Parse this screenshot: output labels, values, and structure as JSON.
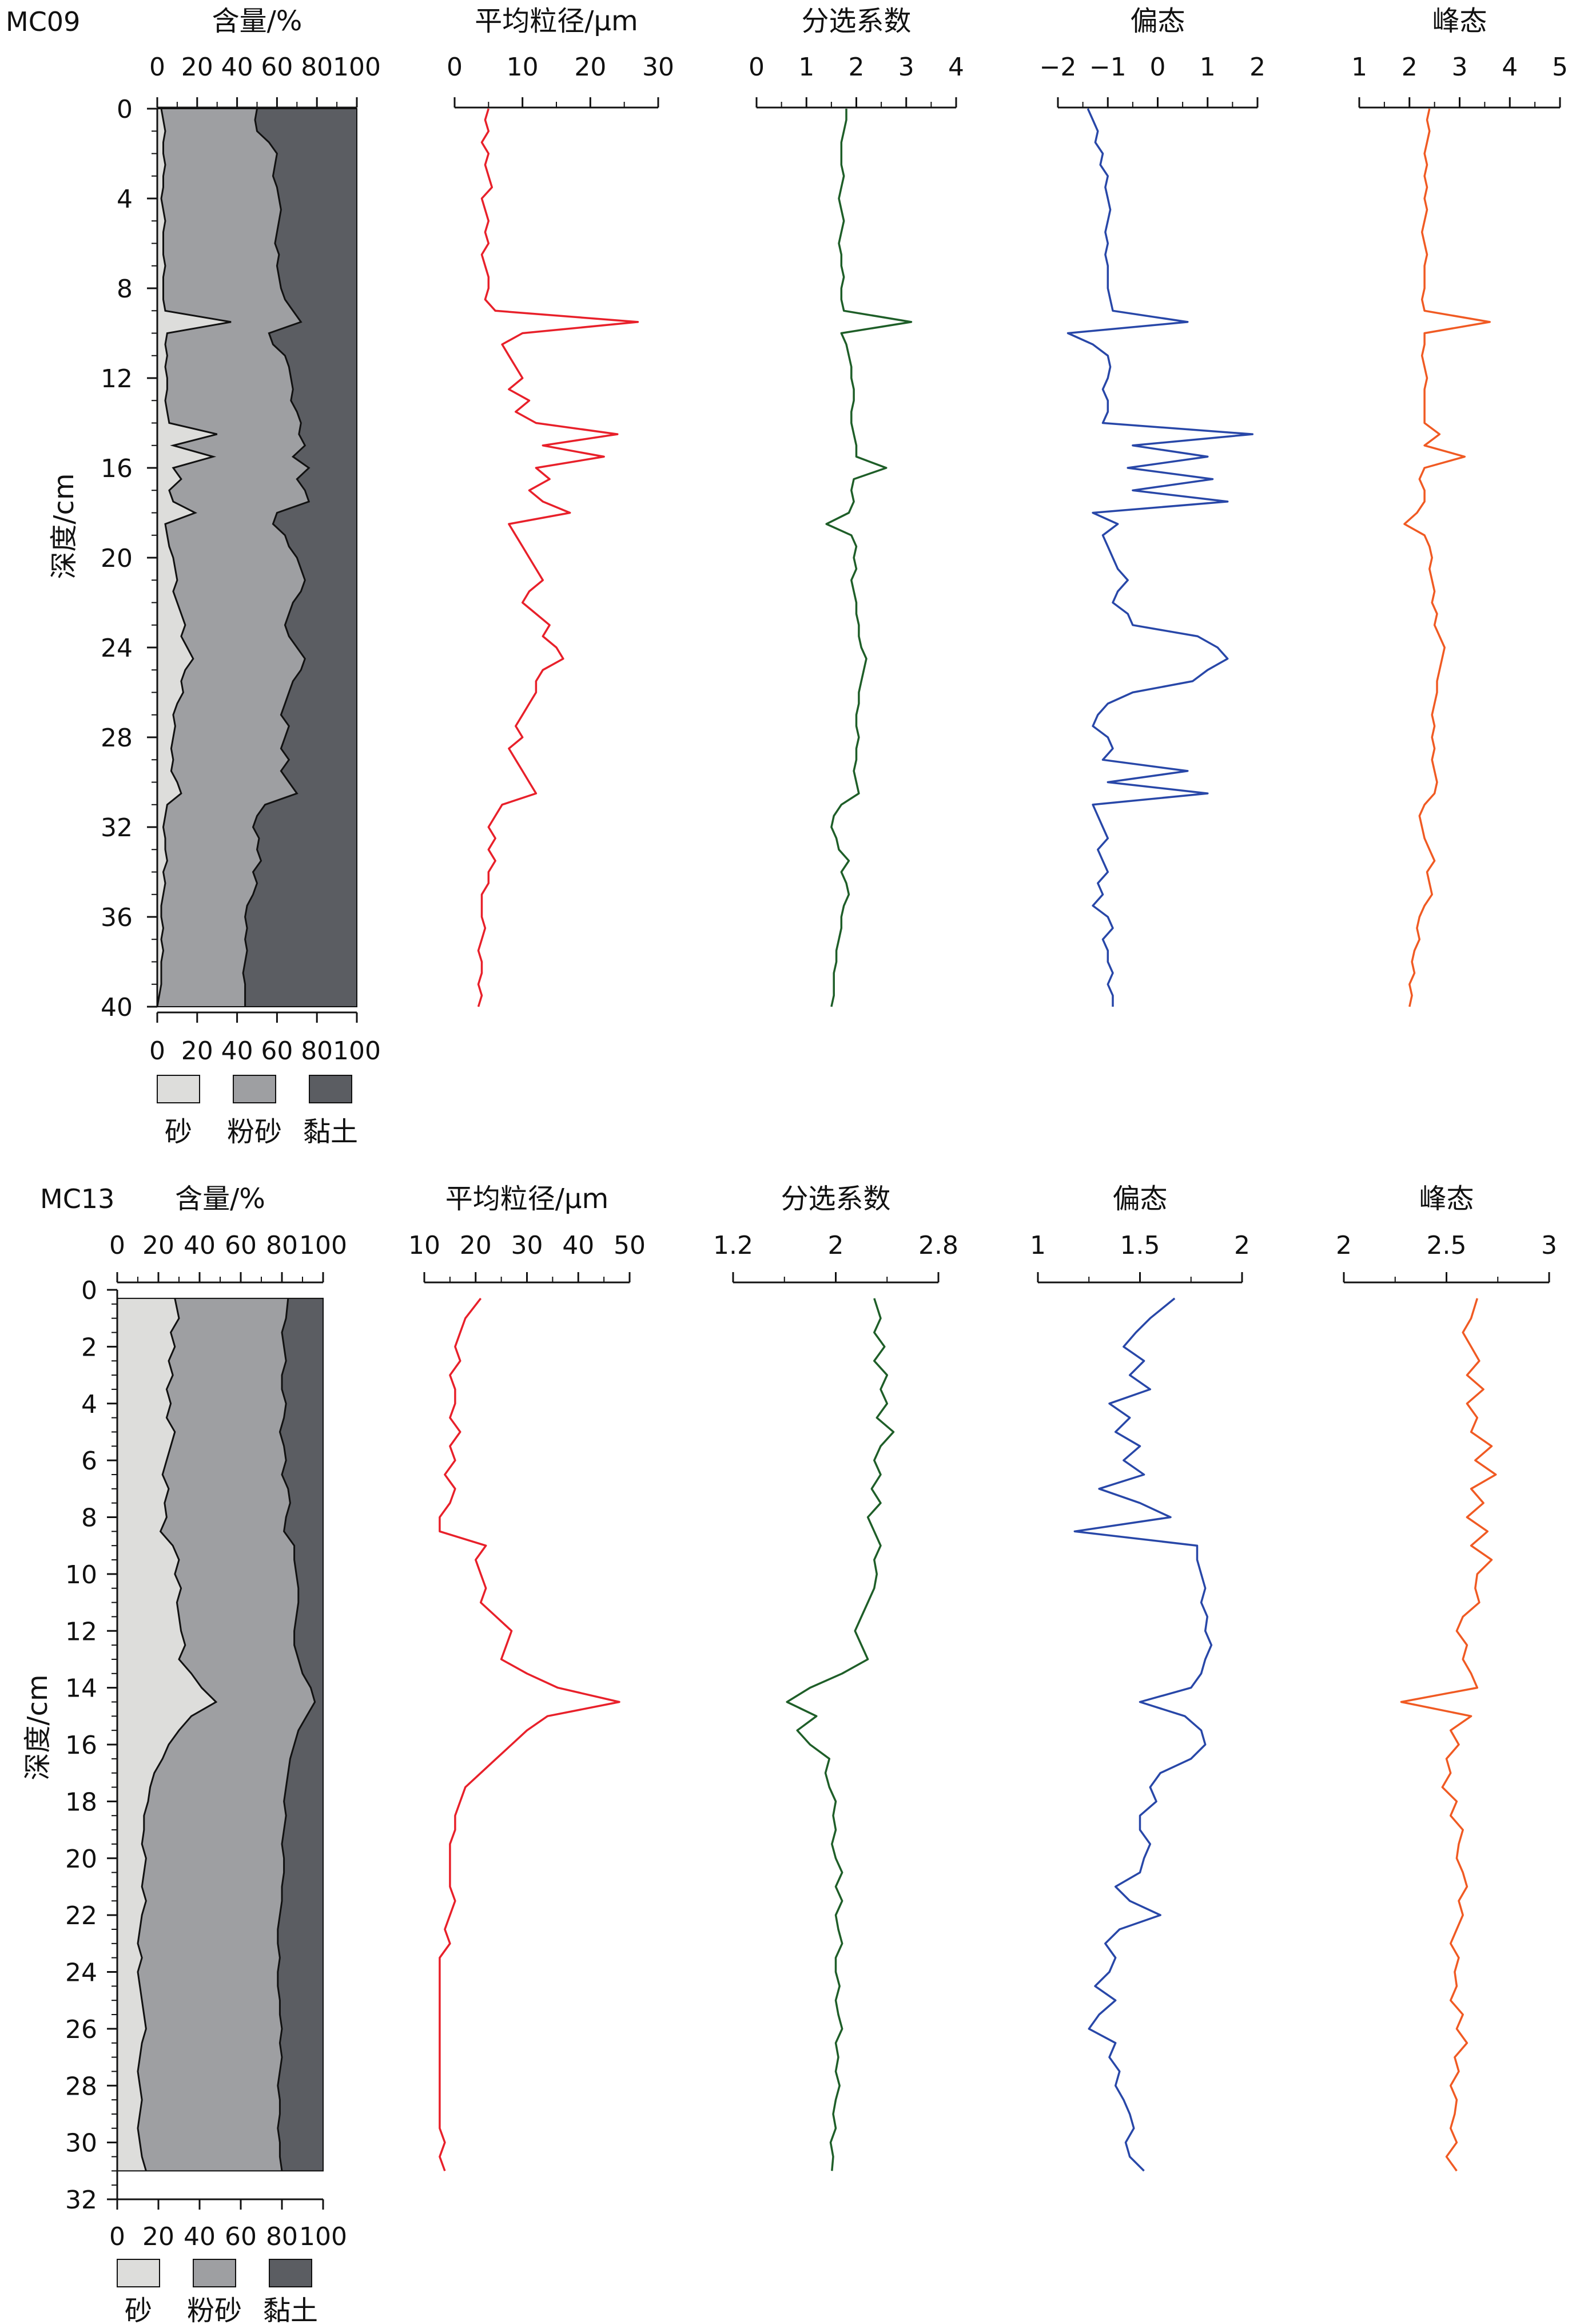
{
  "colors": {
    "sand": "#dddddb",
    "silt": "#9e9fa2",
    "clay": "#5b5d62",
    "axis": "#111111",
    "mz": "#e8202a",
    "sort": "#1e5e28",
    "skew": "#2847a8",
    "kurt": "#f05a23"
  },
  "legend": [
    "砂",
    "粉砂",
    "黏土"
  ],
  "depth_axis_label": "深度/cm",
  "chart_data": [
    {
      "core": "MC09",
      "type": "area+line",
      "depth_range": [
        0,
        40
      ],
      "depth_ticks": [
        0,
        4,
        8,
        12,
        16,
        20,
        24,
        28,
        32,
        36,
        40
      ],
      "depth_label": "深度/cm",
      "panels": [
        {
          "key": "content",
          "title": "含量/%",
          "range": [
            0,
            100
          ],
          "ticks": [
            0,
            20,
            40,
            60,
            80,
            100
          ]
        },
        {
          "key": "mz",
          "title": "平均粒径/μm",
          "range": [
            0,
            30
          ],
          "ticks": [
            0,
            10,
            20,
            30
          ]
        },
        {
          "key": "sort",
          "title": "分选系数",
          "range": [
            0,
            4
          ],
          "ticks": [
            0,
            1,
            2,
            3,
            4
          ]
        },
        {
          "key": "skew",
          "title": "偏态",
          "range": [
            -2,
            2
          ],
          "ticks": [
            -2,
            -1,
            0,
            1,
            2
          ],
          "tick_labels": [
            "−2",
            "−1",
            "0",
            "1",
            "2"
          ]
        },
        {
          "key": "kurt",
          "title": "峰态",
          "range": [
            1,
            5
          ],
          "ticks": [
            1,
            2,
            3,
            4,
            5
          ]
        }
      ],
      "depth": [
        0,
        0.5,
        1,
        1.5,
        2,
        2.5,
        3,
        3.5,
        4,
        4.5,
        5,
        5.5,
        6,
        6.5,
        7,
        7.5,
        8,
        8.5,
        9,
        9.5,
        10,
        10.5,
        11,
        11.5,
        12,
        12.5,
        13,
        13.5,
        14,
        14.5,
        15,
        15.5,
        16,
        16.5,
        17,
        17.5,
        18,
        18.5,
        19,
        19.5,
        20,
        20.5,
        21,
        21.5,
        22,
        22.5,
        23,
        23.5,
        24,
        24.5,
        25,
        25.5,
        26,
        26.5,
        27,
        27.5,
        28,
        28.5,
        29,
        29.5,
        30,
        30.5,
        31,
        31.5,
        32,
        32.5,
        33,
        33.5,
        34,
        34.5,
        35,
        35.5,
        36,
        36.5,
        37,
        37.5,
        38,
        38.5,
        39,
        39.5,
        40
      ],
      "sand": [
        2,
        3,
        4,
        3,
        3,
        4,
        3,
        3,
        2,
        3,
        4,
        3,
        3,
        3,
        4,
        3,
        3,
        3,
        4,
        37,
        5,
        4,
        5,
        4,
        5,
        5,
        4,
        5,
        6,
        30,
        8,
        28,
        8,
        12,
        6,
        8,
        19,
        4,
        5,
        6,
        8,
        9,
        10,
        8,
        10,
        12,
        14,
        12,
        15,
        18,
        14,
        12,
        13,
        10,
        8,
        9,
        8,
        7,
        8,
        7,
        10,
        12,
        5,
        4,
        3,
        4,
        4,
        5,
        3,
        4,
        3,
        2,
        2,
        3,
        2,
        3,
        2,
        2,
        2,
        1,
        0
      ],
      "clay_top": [
        50,
        49,
        50,
        56,
        60,
        59,
        58,
        60,
        61,
        62,
        61,
        60,
        59,
        61,
        60,
        61,
        62,
        64,
        68,
        72,
        56,
        58,
        64,
        66,
        67,
        68,
        67,
        70,
        72,
        71,
        74,
        68,
        76,
        70,
        74,
        76,
        60,
        58,
        64,
        66,
        70,
        72,
        74,
        72,
        68,
        66,
        64,
        66,
        70,
        74,
        72,
        68,
        66,
        64,
        62,
        66,
        64,
        62,
        66,
        62,
        66,
        70,
        54,
        50,
        48,
        51,
        50,
        52,
        48,
        50,
        48,
        45,
        44,
        45,
        44,
        45,
        44,
        43,
        44,
        44,
        44
      ],
      "series": {
        "mz": [
          5,
          4.5,
          5,
          4,
          5,
          4.5,
          5,
          5.5,
          4,
          4.5,
          5,
          4.5,
          5,
          4,
          4.5,
          5,
          5,
          4.5,
          6,
          27,
          10,
          7,
          8,
          9,
          10,
          8,
          11,
          9,
          12,
          24,
          13,
          22,
          12,
          14,
          11,
          13,
          17,
          8,
          9,
          10,
          11,
          12,
          13,
          11,
          10,
          12,
          14,
          13,
          15,
          16,
          13,
          12,
          12,
          11,
          10,
          9,
          10,
          8,
          9,
          10,
          11,
          12,
          7,
          6,
          5,
          6,
          5,
          6,
          5,
          5,
          4,
          4,
          4,
          4.5,
          4,
          3.5,
          4,
          4,
          3.5,
          4,
          3.5
        ],
        "sort": [
          1.8,
          1.8,
          1.75,
          1.7,
          1.7,
          1.7,
          1.75,
          1.7,
          1.65,
          1.7,
          1.75,
          1.7,
          1.65,
          1.7,
          1.7,
          1.75,
          1.7,
          1.7,
          1.75,
          3.1,
          1.7,
          1.8,
          1.85,
          1.9,
          1.9,
          1.95,
          1.95,
          1.9,
          1.9,
          1.95,
          2.0,
          2.0,
          2.6,
          1.95,
          1.9,
          1.95,
          1.85,
          1.4,
          1.9,
          2.0,
          1.95,
          2.0,
          1.9,
          1.95,
          2.0,
          2.0,
          2.05,
          2.05,
          2.1,
          2.2,
          2.15,
          2.1,
          2.05,
          2.05,
          2.0,
          2.0,
          2.05,
          2.0,
          2.0,
          1.95,
          2.0,
          2.05,
          1.7,
          1.55,
          1.5,
          1.6,
          1.65,
          1.85,
          1.7,
          1.8,
          1.85,
          1.75,
          1.7,
          1.7,
          1.65,
          1.6,
          1.6,
          1.55,
          1.55,
          1.55,
          1.5
        ],
        "skew": [
          -1.4,
          -1.3,
          -1.2,
          -1.25,
          -1.1,
          -1.15,
          -1.0,
          -1.05,
          -1.0,
          -0.95,
          -1.0,
          -1.05,
          -1.0,
          -1.05,
          -1.0,
          -1.0,
          -1.0,
          -0.95,
          -0.9,
          0.6,
          -1.8,
          -1.3,
          -1.0,
          -0.95,
          -1.0,
          -1.1,
          -1.0,
          -1.0,
          -1.1,
          1.9,
          -0.5,
          1.0,
          -0.6,
          1.1,
          -0.5,
          1.4,
          -1.3,
          -0.8,
          -1.1,
          -1.0,
          -0.9,
          -0.8,
          -0.6,
          -0.8,
          -0.9,
          -0.6,
          -0.5,
          0.8,
          1.2,
          1.4,
          1.0,
          0.7,
          -0.5,
          -1.0,
          -1.2,
          -1.3,
          -1.0,
          -0.9,
          -1.1,
          0.6,
          -1.0,
          1.0,
          -1.3,
          -1.2,
          -1.1,
          -1.0,
          -1.2,
          -1.1,
          -1.0,
          -1.2,
          -1.1,
          -1.3,
          -1.0,
          -0.9,
          -1.1,
          -1.0,
          -1.0,
          -0.9,
          -1.0,
          -0.9,
          -0.9
        ],
        "kurt": [
          2.4,
          2.35,
          2.4,
          2.35,
          2.3,
          2.35,
          2.3,
          2.35,
          2.3,
          2.35,
          2.3,
          2.25,
          2.3,
          2.35,
          2.3,
          2.3,
          2.3,
          2.25,
          2.3,
          3.6,
          2.3,
          2.3,
          2.25,
          2.3,
          2.35,
          2.3,
          2.3,
          2.3,
          2.3,
          2.6,
          2.3,
          3.1,
          2.3,
          2.2,
          2.3,
          2.3,
          2.15,
          1.9,
          2.3,
          2.4,
          2.45,
          2.4,
          2.45,
          2.5,
          2.45,
          2.55,
          2.5,
          2.6,
          2.7,
          2.65,
          2.6,
          2.55,
          2.55,
          2.5,
          2.45,
          2.5,
          2.45,
          2.5,
          2.45,
          2.5,
          2.55,
          2.5,
          2.3,
          2.2,
          2.25,
          2.3,
          2.4,
          2.5,
          2.35,
          2.4,
          2.45,
          2.3,
          2.2,
          2.15,
          2.2,
          2.1,
          2.05,
          2.1,
          2.0,
          2.05,
          2.0
        ]
      }
    },
    {
      "core": "MC13",
      "type": "area+line",
      "depth_range": [
        0,
        32
      ],
      "depth_ticks": [
        0,
        2,
        4,
        6,
        8,
        10,
        12,
        14,
        16,
        18,
        20,
        22,
        24,
        26,
        28,
        30,
        32
      ],
      "depth_label": "深度/cm",
      "data_depth_max": 31,
      "panels": [
        {
          "key": "content",
          "title": "含量/%",
          "range": [
            0,
            100
          ],
          "ticks": [
            0,
            20,
            40,
            60,
            80,
            100
          ]
        },
        {
          "key": "mz",
          "title": "平均粒径/μm",
          "range": [
            10,
            50
          ],
          "ticks": [
            10,
            20,
            30,
            40,
            50
          ]
        },
        {
          "key": "sort",
          "title": "分选系数",
          "range": [
            1.2,
            2.8
          ],
          "ticks": [
            1.2,
            2,
            2.8
          ]
        },
        {
          "key": "skew",
          "title": "偏态",
          "range": [
            1,
            2
          ],
          "ticks": [
            1,
            1.5,
            2
          ]
        },
        {
          "key": "kurt",
          "title": "峰态",
          "range": [
            2,
            3
          ],
          "ticks": [
            2,
            2.5,
            3
          ]
        }
      ],
      "depth": [
        0.3,
        1,
        1.5,
        2,
        2.5,
        3,
        3.5,
        4,
        4.5,
        5,
        5.5,
        6,
        6.5,
        7,
        7.5,
        8,
        8.5,
        9,
        9.5,
        10,
        10.5,
        11,
        11.5,
        12,
        12.5,
        13,
        13.5,
        14,
        14.5,
        15,
        15.5,
        16,
        16.5,
        17,
        17.5,
        18,
        18.5,
        19,
        19.5,
        20,
        20.5,
        21,
        21.5,
        22,
        22.5,
        23,
        23.5,
        24,
        24.5,
        25,
        25.5,
        26,
        26.5,
        27,
        27.5,
        28,
        28.5,
        29,
        29.5,
        30,
        30.5,
        31
      ],
      "sand": [
        28,
        30,
        26,
        28,
        25,
        27,
        24,
        26,
        24,
        28,
        26,
        24,
        22,
        25,
        23,
        24,
        21,
        27,
        30,
        28,
        31,
        29,
        30,
        31,
        33,
        30,
        36,
        41,
        48,
        36,
        30,
        25,
        22,
        18,
        16,
        15,
        13,
        13,
        12,
        14,
        13,
        12,
        14,
        12,
        11,
        10,
        12,
        10,
        11,
        12,
        13,
        14,
        12,
        11,
        10,
        11,
        12,
        11,
        10,
        11,
        12,
        14
      ],
      "clay_top": [
        83,
        82,
        80,
        81,
        82,
        80,
        80,
        82,
        81,
        79,
        81,
        82,
        80,
        83,
        84,
        82,
        81,
        86,
        86,
        87,
        88,
        88,
        87,
        86,
        86,
        88,
        90,
        94,
        96,
        92,
        88,
        86,
        84,
        83,
        82,
        81,
        82,
        81,
        80,
        81,
        81,
        80,
        80,
        79,
        78,
        78,
        79,
        78,
        78,
        79,
        79,
        80,
        79,
        80,
        79,
        78,
        79,
        79,
        78,
        79,
        79,
        80
      ],
      "series": {
        "mz": [
          21,
          18,
          17,
          16,
          17,
          15,
          16,
          16,
          15,
          17,
          15,
          16,
          14,
          16,
          15,
          13,
          13,
          22,
          20,
          21,
          22,
          21,
          24,
          27,
          26,
          25,
          30,
          36,
          48,
          34,
          30,
          27,
          24,
          21,
          18,
          17,
          16,
          16,
          15,
          15,
          15,
          15,
          16,
          15,
          14,
          15,
          13,
          13,
          13,
          13,
          13,
          13,
          13,
          13,
          13,
          13,
          13,
          13,
          13,
          14,
          13,
          14
        ],
        "sort": [
          2.3,
          2.35,
          2.3,
          2.38,
          2.3,
          2.4,
          2.35,
          2.4,
          2.32,
          2.45,
          2.35,
          2.3,
          2.35,
          2.28,
          2.35,
          2.25,
          2.3,
          2.35,
          2.3,
          2.32,
          2.3,
          2.25,
          2.2,
          2.15,
          2.2,
          2.25,
          2.05,
          1.8,
          1.62,
          1.85,
          1.7,
          1.8,
          1.95,
          1.92,
          1.95,
          2.0,
          1.98,
          2.0,
          1.97,
          2.0,
          2.05,
          2.0,
          2.05,
          2.0,
          2.02,
          2.05,
          2.0,
          2.0,
          2.03,
          2.0,
          2.02,
          2.05,
          2.0,
          2.02,
          2.0,
          2.03,
          2.0,
          1.98,
          2.0,
          1.96,
          1.98,
          1.97
        ],
        "skew": [
          1.67,
          1.55,
          1.48,
          1.42,
          1.52,
          1.45,
          1.55,
          1.35,
          1.45,
          1.38,
          1.5,
          1.42,
          1.52,
          1.3,
          1.5,
          1.65,
          1.18,
          1.78,
          1.78,
          1.8,
          1.82,
          1.8,
          1.83,
          1.82,
          1.85,
          1.82,
          1.8,
          1.75,
          1.5,
          1.72,
          1.8,
          1.82,
          1.75,
          1.6,
          1.55,
          1.58,
          1.5,
          1.5,
          1.55,
          1.52,
          1.5,
          1.38,
          1.45,
          1.6,
          1.4,
          1.33,
          1.38,
          1.35,
          1.28,
          1.38,
          1.3,
          1.25,
          1.38,
          1.35,
          1.4,
          1.38,
          1.42,
          1.45,
          1.47,
          1.43,
          1.45,
          1.52
        ],
        "kurt": [
          2.65,
          2.62,
          2.58,
          2.62,
          2.66,
          2.6,
          2.68,
          2.6,
          2.65,
          2.62,
          2.72,
          2.64,
          2.74,
          2.62,
          2.68,
          2.6,
          2.7,
          2.62,
          2.72,
          2.65,
          2.64,
          2.66,
          2.58,
          2.55,
          2.6,
          2.58,
          2.62,
          2.65,
          2.28,
          2.62,
          2.52,
          2.56,
          2.5,
          2.52,
          2.48,
          2.55,
          2.52,
          2.58,
          2.56,
          2.55,
          2.58,
          2.6,
          2.56,
          2.58,
          2.55,
          2.52,
          2.56,
          2.54,
          2.55,
          2.52,
          2.58,
          2.55,
          2.6,
          2.54,
          2.56,
          2.52,
          2.55,
          2.54,
          2.52,
          2.55,
          2.5,
          2.55
        ]
      }
    }
  ]
}
